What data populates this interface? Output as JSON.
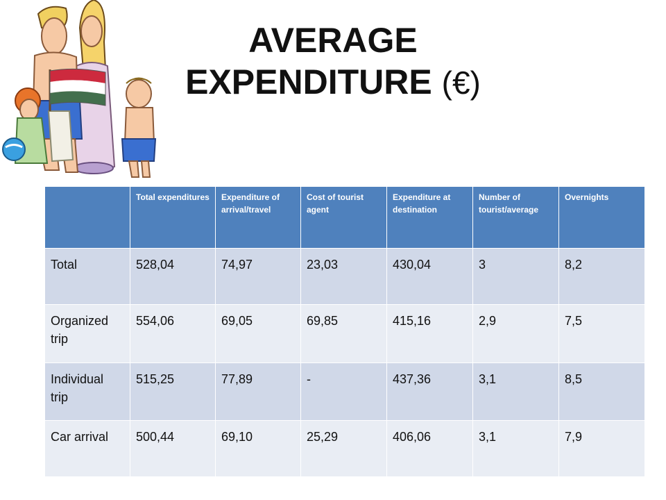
{
  "title": {
    "main": "AVERAGE EXPENDITURE",
    "unit": "(€)"
  },
  "clipart": {
    "icon": "tourist-family-hungarian-flag-icon",
    "flag_colors": [
      "#cd2a3e",
      "#ffffff",
      "#436f4d"
    ]
  },
  "colors": {
    "header_bg": "#4f81bd",
    "row_odd": "#d0d8e8",
    "row_even": "#e9edf4"
  },
  "table": {
    "headers": [
      "",
      "Total expenditures",
      "Expenditure of arrival/travel",
      "Cost of tourist agent",
      "Expenditure at destination",
      "Number of tourist/average",
      "Overnights"
    ],
    "rows": [
      [
        "Total",
        "528,04",
        "74,97",
        "23,03",
        "430,04",
        "3",
        "8,2"
      ],
      [
        "Organized trip",
        "554,06",
        "69,05",
        "69,85",
        "415,16",
        "2,9",
        "7,5"
      ],
      [
        "Individual trip",
        "515,25",
        "77,89",
        "-",
        "437,36",
        "3,1",
        "8,5"
      ],
      [
        "Car arrival",
        "500,44",
        "69,10",
        "25,29",
        "406,06",
        "3,1",
        "7,9"
      ]
    ]
  }
}
